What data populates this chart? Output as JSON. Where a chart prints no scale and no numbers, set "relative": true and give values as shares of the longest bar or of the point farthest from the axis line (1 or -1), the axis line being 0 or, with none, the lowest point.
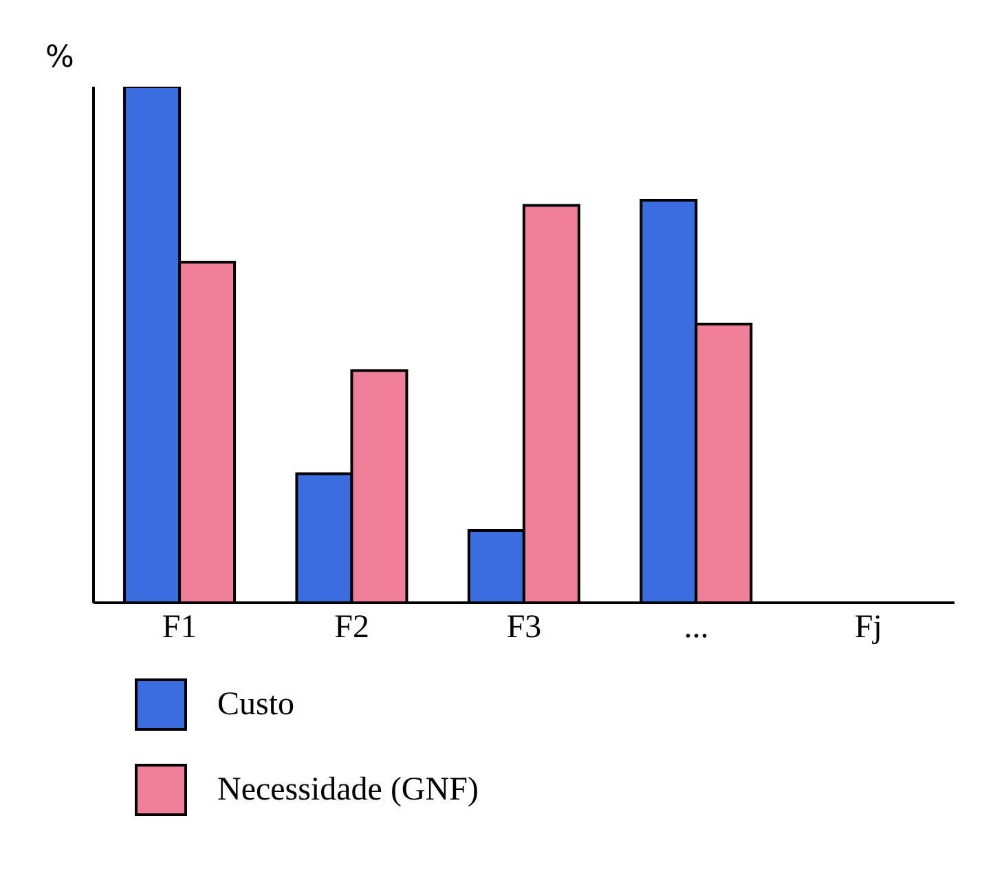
{
  "chart_data": {
    "type": "bar",
    "relative": true,
    "ylabel": "%",
    "categories": [
      "F1",
      "F2",
      "F3",
      "...",
      "Fj"
    ],
    "series": [
      {
        "name": "Custo",
        "color": "#3a6ee0",
        "values": [
          1,
          0.25,
          0.14,
          0.78,
          null
        ]
      },
      {
        "name": "Necessidade (GNF)",
        "color": "#f0809a",
        "values": [
          0.66,
          0.45,
          0.77,
          0.54,
          null
        ]
      }
    ],
    "legend": "bottom left"
  }
}
